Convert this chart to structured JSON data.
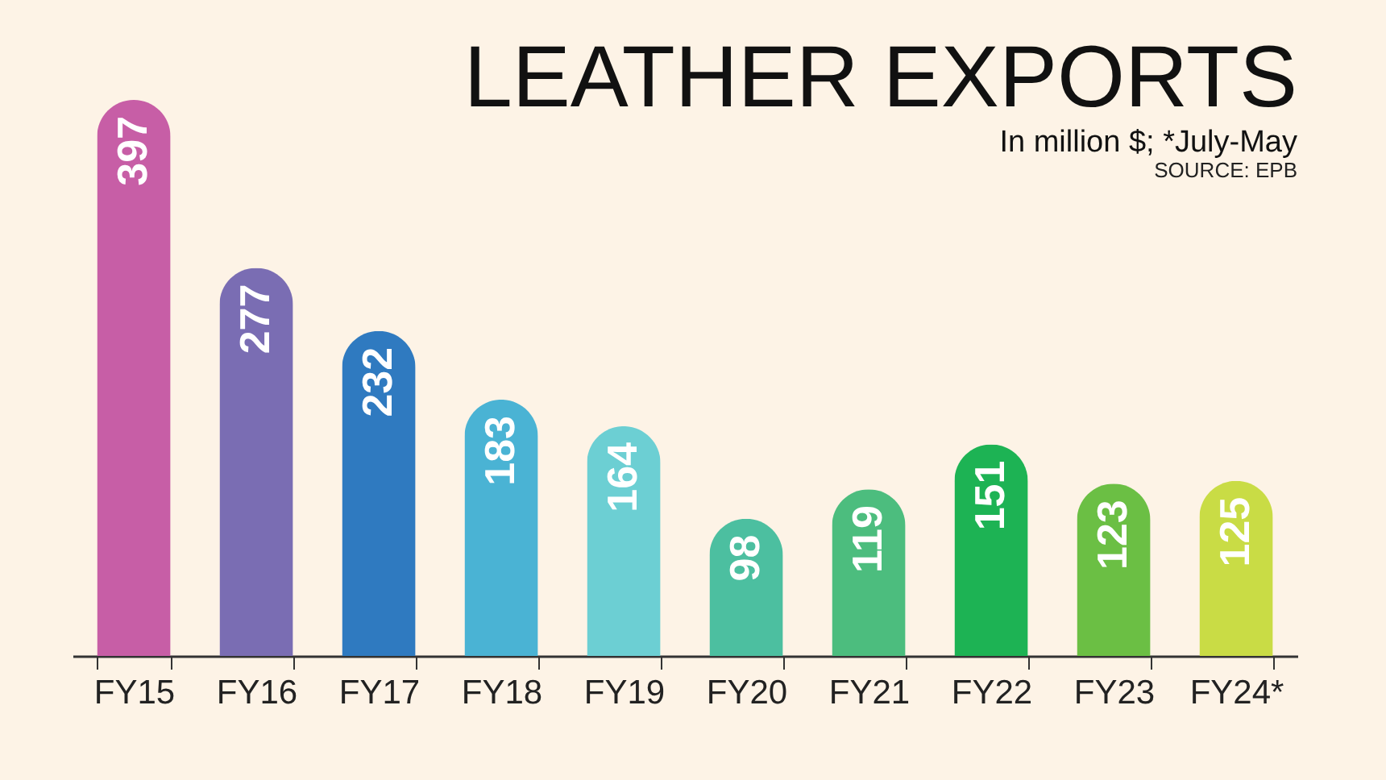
{
  "chart_data": {
    "type": "bar",
    "title": "LEATHER EXPORTS",
    "subtitle": "In million $; *July-May",
    "annotations": [
      "SOURCE: EPB"
    ],
    "categories": [
      "FY15",
      "FY16",
      "FY17",
      "FY18",
      "FY19",
      "FY20",
      "FY21",
      "FY22",
      "FY23",
      "FY24*"
    ],
    "values": [
      397,
      277,
      232,
      183,
      164,
      98,
      119,
      151,
      123,
      125
    ],
    "colors": [
      "#c75ea6",
      "#7a6db3",
      "#2f7ac0",
      "#4ab3d4",
      "#6ccfd3",
      "#4cbfa0",
      "#4cbd7e",
      "#1db354",
      "#6bbf44",
      "#c9dc45"
    ],
    "data_labels": true,
    "grid": false
  }
}
